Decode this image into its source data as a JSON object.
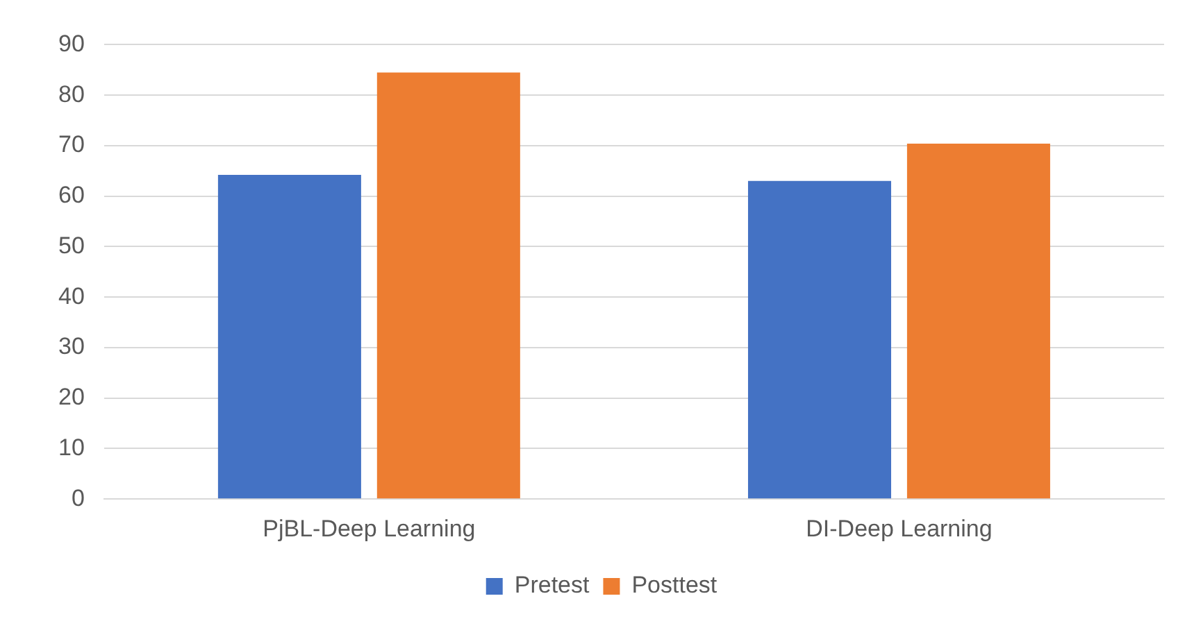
{
  "chart_data": {
    "type": "bar",
    "categories": [
      "PjBL-Deep Learning",
      "DI-Deep Learning"
    ],
    "series": [
      {
        "name": "Pretest",
        "color": "#4472c4",
        "values": [
          64.2,
          63
        ]
      },
      {
        "name": "Posttest",
        "color": "#ed7d31",
        "values": [
          84.5,
          70.4
        ]
      }
    ],
    "ylim": [
      0,
      90
    ],
    "yticks": [
      0,
      10,
      20,
      30,
      40,
      50,
      60,
      70,
      80,
      90
    ],
    "grid": "y",
    "legend": "bottom"
  }
}
